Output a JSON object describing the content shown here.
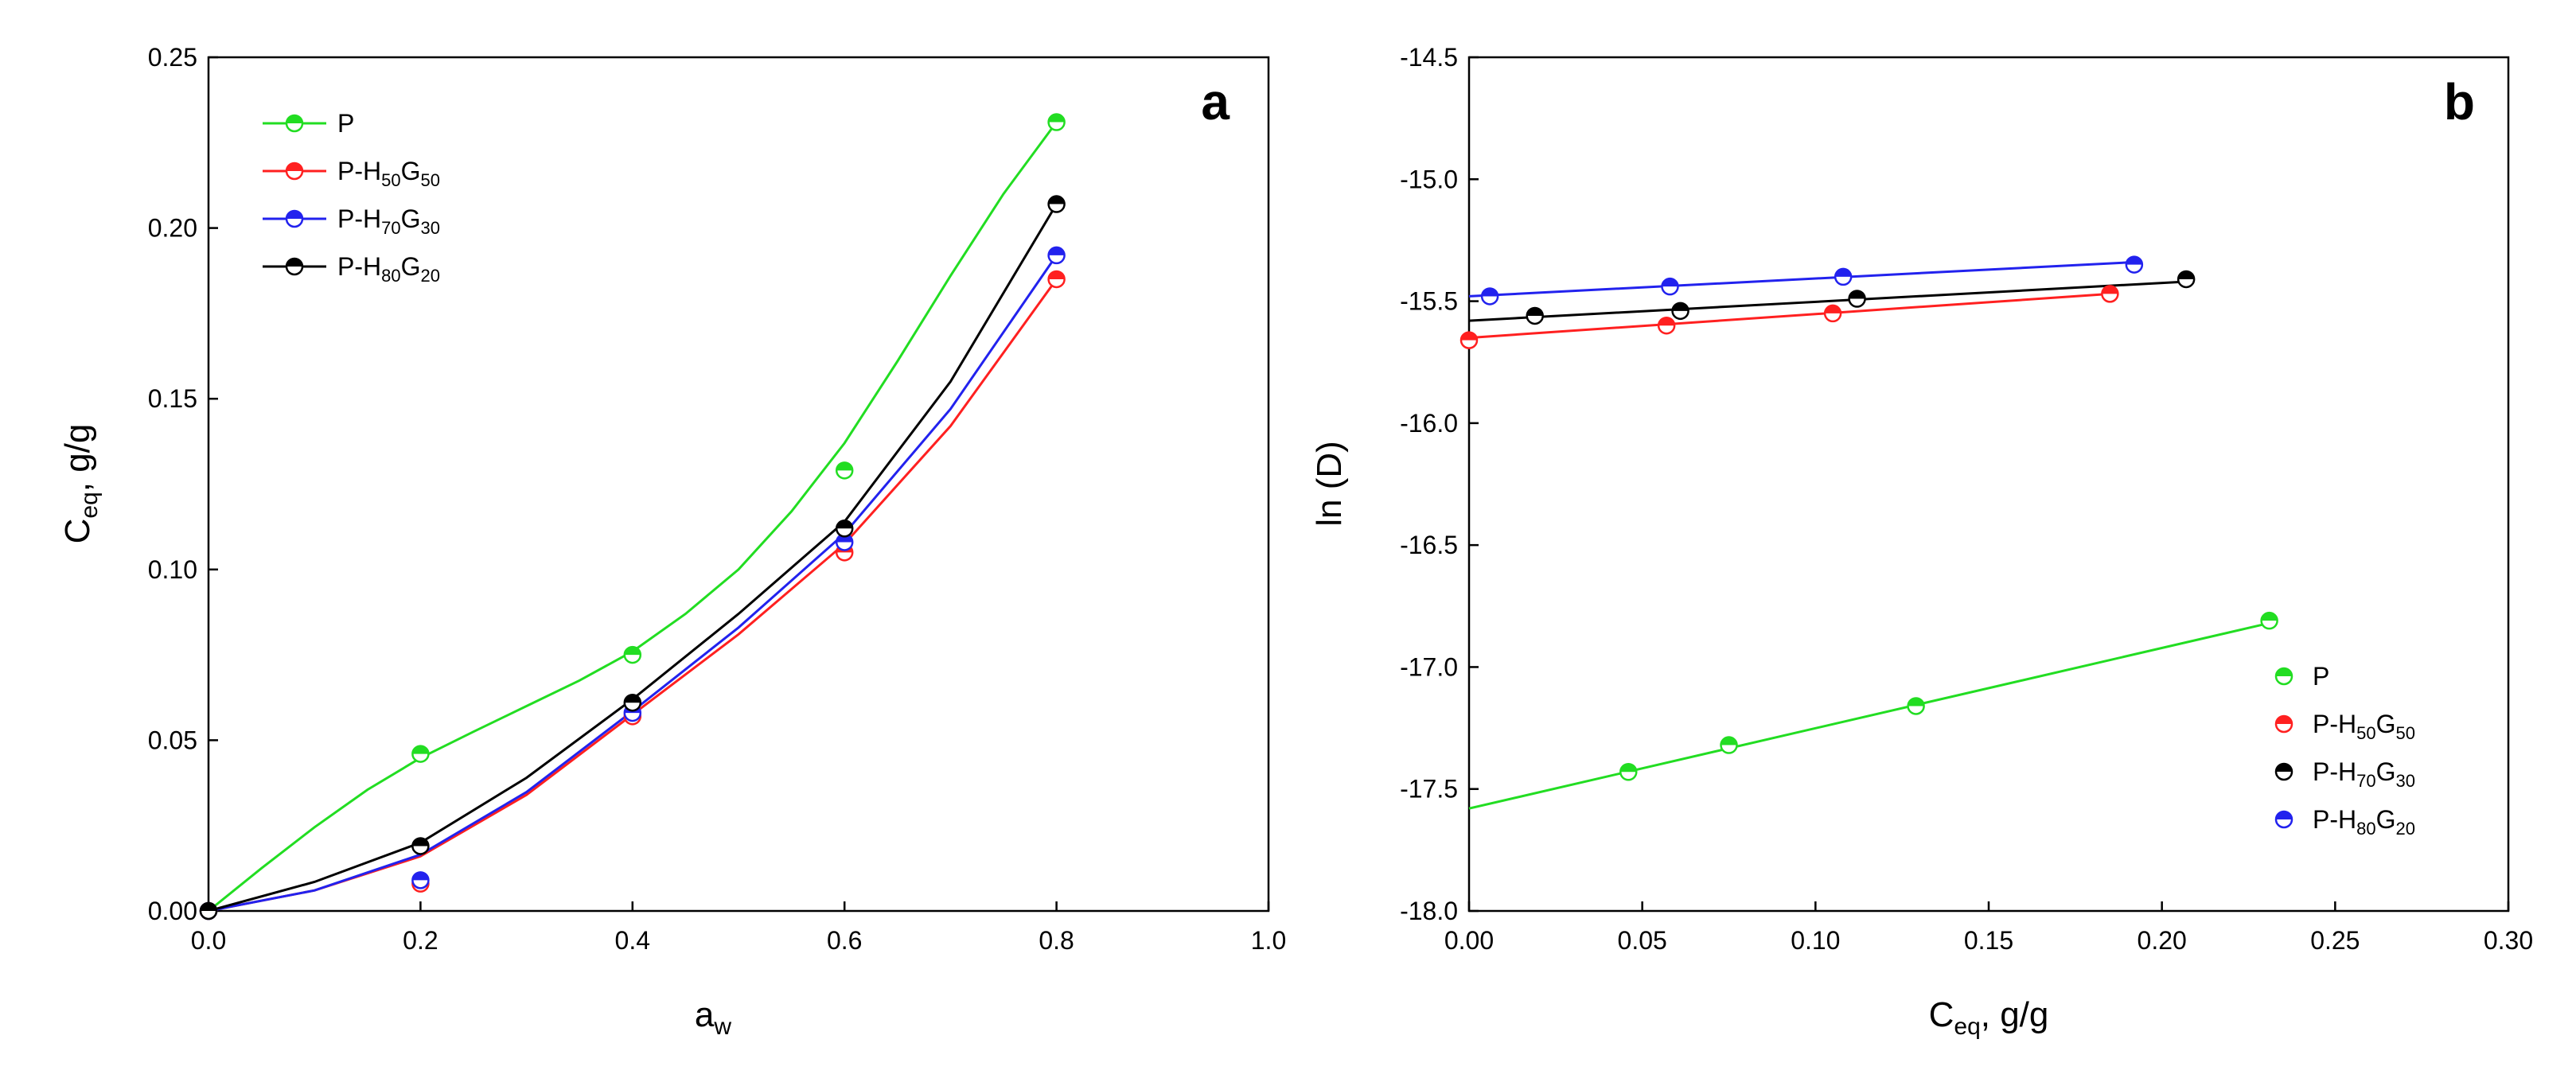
{
  "chart_data": [
    {
      "type": "line",
      "panel_label": "a",
      "xlabel": "a",
      "xlabel_sub": "w",
      "ylabel": "C",
      "ylabel_sub": "eq",
      "ylabel_suffix": ", g/g",
      "xlim": [
        0,
        1.0
      ],
      "ylim": [
        0,
        0.25
      ],
      "xticks": [
        0.0,
        0.2,
        0.4,
        0.6,
        0.8,
        1.0
      ],
      "xtick_labels": [
        "0.0",
        "0.2",
        "0.4",
        "0.6",
        "0.8",
        "1.0"
      ],
      "yticks": [
        0.0,
        0.05,
        0.1,
        0.15,
        0.2,
        0.25
      ],
      "ytick_labels": [
        "0.00",
        "0.05",
        "0.10",
        "0.15",
        "0.20",
        "0.25"
      ],
      "legend_position": "top-left",
      "series": [
        {
          "id": "P",
          "name": "P",
          "sub1": "",
          "mid": "",
          "sub2": "",
          "color": "#22dd22",
          "x": [
            0,
            0.2,
            0.4,
            0.6,
            0.8
          ],
          "values": [
            0,
            0.046,
            0.075,
            0.129,
            0.231
          ],
          "fit_x": [
            0,
            0.05,
            0.1,
            0.15,
            0.2,
            0.25,
            0.3,
            0.35,
            0.4,
            0.45,
            0.5,
            0.55,
            0.6,
            0.65,
            0.7,
            0.75,
            0.8
          ],
          "fit_y": [
            0,
            0.0125,
            0.0245,
            0.0355,
            0.0448,
            0.0525,
            0.06,
            0.0675,
            0.076,
            0.087,
            0.1,
            0.117,
            0.137,
            0.161,
            0.186,
            0.21,
            0.231
          ]
        },
        {
          "id": "H50",
          "name": "P-H",
          "sub1": "50",
          "mid": "G",
          "sub2": "50",
          "color": "#ff2020",
          "x": [
            0,
            0.2,
            0.4,
            0.6,
            0.8
          ],
          "values": [
            0,
            0.008,
            0.057,
            0.105,
            0.185
          ],
          "fit_x": [
            0,
            0.1,
            0.2,
            0.3,
            0.4,
            0.5,
            0.6,
            0.7,
            0.8
          ],
          "fit_y": [
            0,
            0.006,
            0.016,
            0.034,
            0.0575,
            0.081,
            0.1075,
            0.142,
            0.185
          ]
        },
        {
          "id": "H70",
          "name": "P-H",
          "sub1": "70",
          "mid": "G",
          "sub2": "30",
          "color": "#2222ee",
          "x": [
            0,
            0.2,
            0.4,
            0.6,
            0.8
          ],
          "values": [
            0,
            0.009,
            0.058,
            0.108,
            0.192
          ],
          "fit_x": [
            0,
            0.1,
            0.2,
            0.3,
            0.4,
            0.5,
            0.6,
            0.7,
            0.8
          ],
          "fit_y": [
            0,
            0.006,
            0.0165,
            0.0348,
            0.0585,
            0.083,
            0.1105,
            0.147,
            0.192
          ]
        },
        {
          "id": "H80",
          "name": "P-H",
          "sub1": "80",
          "mid": "G",
          "sub2": "20",
          "color": "#000000",
          "x": [
            0,
            0.2,
            0.4,
            0.6,
            0.8
          ],
          "values": [
            0,
            0.019,
            0.061,
            0.112,
            0.207
          ],
          "fit_x": [
            0,
            0.1,
            0.2,
            0.3,
            0.4,
            0.5,
            0.6,
            0.7,
            0.8
          ],
          "fit_y": [
            0,
            0.0085,
            0.02,
            0.039,
            0.062,
            0.087,
            0.114,
            0.155,
            0.207
          ]
        }
      ]
    },
    {
      "type": "scatter",
      "panel_label": "b",
      "xlabel": "C",
      "xlabel_sub": "eq",
      "xlabel_suffix": ", g/g",
      "ylabel": "ln (D)",
      "xlim": [
        0,
        0.3
      ],
      "ylim": [
        -18.0,
        -14.5
      ],
      "xticks": [
        0.0,
        0.05,
        0.1,
        0.15,
        0.2,
        0.25,
        0.3
      ],
      "xtick_labels": [
        "0.00",
        "0.05",
        "0.10",
        "0.15",
        "0.20",
        "0.25",
        "0.30"
      ],
      "yticks": [
        -18.0,
        -17.5,
        -17.0,
        -16.5,
        -16.0,
        -15.5,
        -15.0,
        -14.5
      ],
      "ytick_labels": [
        "-18.0",
        "-17.5",
        "-17.0",
        "-16.5",
        "-16.0",
        "-15.5",
        "-15.0",
        "-14.5"
      ],
      "legend_position": "bottom-right",
      "series": [
        {
          "id": "P",
          "name": "P",
          "sub1": "",
          "mid": "",
          "sub2": "",
          "color": "#22dd22",
          "x": [
            0.046,
            0.075,
            0.129,
            0.231
          ],
          "values": [
            -17.43,
            -17.32,
            -17.16,
            -16.81
          ],
          "fit_x": [
            0,
            0.231
          ],
          "fit_y": [
            -17.58,
            -16.82
          ]
        },
        {
          "id": "H50",
          "name": "P-H",
          "sub1": "50",
          "mid": "G",
          "sub2": "50",
          "color": "#ff2020",
          "x": [
            0.0,
            0.057,
            0.105,
            0.185
          ],
          "values": [
            -15.66,
            -15.6,
            -15.55,
            -15.47
          ],
          "fit_x": [
            0,
            0.185
          ],
          "fit_y": [
            -15.65,
            -15.47
          ]
        },
        {
          "id": "H70",
          "name": "P-H",
          "sub1": "70",
          "mid": "G",
          "sub2": "30",
          "color": "#000000",
          "x": [
            0.019,
            0.061,
            0.112,
            0.207
          ],
          "values": [
            -15.56,
            -15.54,
            -15.49,
            -15.41
          ],
          "fit_x": [
            0,
            0.207
          ],
          "fit_y": [
            -15.58,
            -15.42
          ]
        },
        {
          "id": "H80",
          "name": "P-H",
          "sub1": "80",
          "mid": "G",
          "sub2": "20",
          "color": "#2222ee",
          "x": [
            0.006,
            0.058,
            0.108,
            0.192
          ],
          "values": [
            -15.48,
            -15.44,
            -15.4,
            -15.35
          ],
          "fit_x": [
            0,
            0.192
          ],
          "fit_y": [
            -15.48,
            -15.34
          ]
        }
      ]
    }
  ]
}
